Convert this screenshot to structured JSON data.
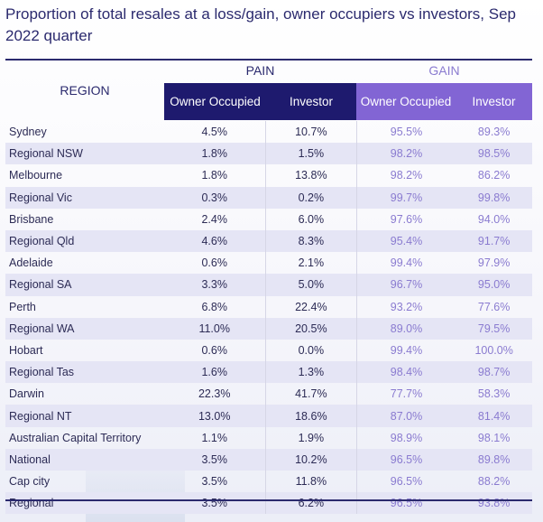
{
  "title": "Proportion of total resales at a loss/gain, owner occupiers vs investors, Sep 2022 quarter",
  "header": {
    "region": "REGION",
    "pain": "PAIN",
    "gain": "GAIN",
    "owner_occupied": "Owner Occupied",
    "investor": "Investor"
  },
  "colors": {
    "navy": "#1e1a6e",
    "purple": "#8265d4",
    "gain_text": "#8a7bd0"
  },
  "rows": [
    [
      "Sydney",
      "4.5%",
      "10.7%",
      "95.5%",
      "89.3%"
    ],
    [
      "Regional NSW",
      "1.8%",
      "1.5%",
      "98.2%",
      "98.5%"
    ],
    [
      "Melbourne",
      "1.8%",
      "13.8%",
      "98.2%",
      "86.2%"
    ],
    [
      "Regional Vic",
      "0.3%",
      "0.2%",
      "99.7%",
      "99.8%"
    ],
    [
      "Brisbane",
      "2.4%",
      "6.0%",
      "97.6%",
      "94.0%"
    ],
    [
      "Regional Qld",
      "4.6%",
      "8.3%",
      "95.4%",
      "91.7%"
    ],
    [
      "Adelaide",
      "0.6%",
      "2.1%",
      "99.4%",
      "97.9%"
    ],
    [
      "Regional SA",
      "3.3%",
      "5.0%",
      "96.7%",
      "95.0%"
    ],
    [
      "Perth",
      "6.8%",
      "22.4%",
      "93.2%",
      "77.6%"
    ],
    [
      "Regional WA",
      "11.0%",
      "20.5%",
      "89.0%",
      "79.5%"
    ],
    [
      "Hobart",
      "0.6%",
      "0.0%",
      "99.4%",
      "100.0%"
    ],
    [
      "Regional Tas",
      "1.6%",
      "1.3%",
      "98.4%",
      "98.7%"
    ],
    [
      "Darwin",
      "22.3%",
      "41.7%",
      "77.7%",
      "58.3%"
    ],
    [
      "Regional NT",
      "13.0%",
      "18.6%",
      "87.0%",
      "81.4%"
    ],
    [
      "Australian Capital Territory",
      "1.1%",
      "1.9%",
      "98.9%",
      "98.1%"
    ],
    [
      "National",
      "3.5%",
      "10.2%",
      "96.5%",
      "89.8%"
    ],
    [
      "Cap city",
      "3.5%",
      "11.8%",
      "96.5%",
      "88.2%"
    ],
    [
      "Regional",
      "3.5%",
      "6.2%",
      "96.5%",
      "93.8%"
    ]
  ]
}
